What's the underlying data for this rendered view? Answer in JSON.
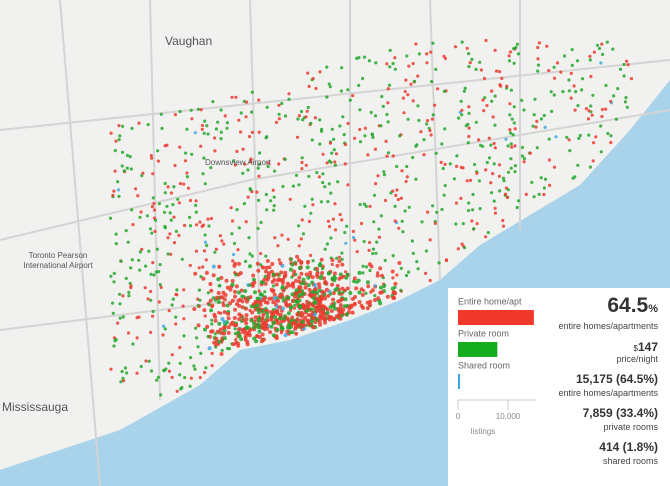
{
  "map": {
    "labels": [
      "Vaughan",
      "Downsview Airport",
      "Toronto Pearson",
      "International Airport",
      "Mississauga"
    ]
  },
  "chart_data": {
    "type": "bar",
    "orientation": "horizontal",
    "categories": [
      "Entire home/apt",
      "Private room",
      "Shared room"
    ],
    "values": [
      15175,
      7859,
      414
    ],
    "colors": [
      "#f0382b",
      "#13ad1f",
      "#3fa9e0"
    ],
    "xlim": [
      0,
      15600
    ],
    "xticks": [
      0,
      {
        "value": 10000,
        "label": "10,000"
      }
    ],
    "xlabel": "listings"
  },
  "stats": {
    "headline": "64.5",
    "headline_unit": "%",
    "headline_caption": "entire homes/apartments",
    "price_currency": "$",
    "price": "147",
    "price_caption": "price/night",
    "rows": [
      {
        "value": "15,175 (64.5%)",
        "caption": "entire homes/apartments"
      },
      {
        "value": "7,859 (33.4%)",
        "caption": "private rooms"
      },
      {
        "value": "414 (1.8%)",
        "caption": "shared rooms"
      }
    ]
  }
}
